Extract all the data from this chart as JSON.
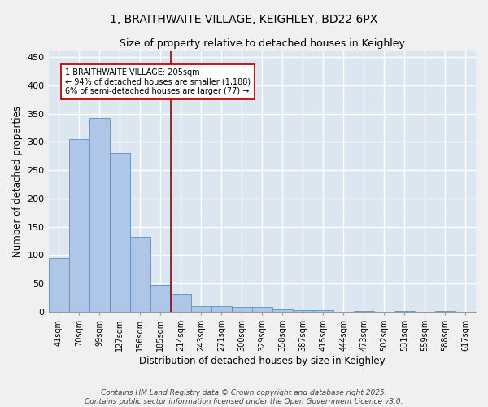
{
  "title_line1": "1, BRAITHWAITE VILLAGE, KEIGHLEY, BD22 6PX",
  "title_line2": "Size of property relative to detached houses in Keighley",
  "xlabel": "Distribution of detached houses by size in Keighley",
  "ylabel": "Number of detached properties",
  "categories": [
    "41sqm",
    "70sqm",
    "99sqm",
    "127sqm",
    "156sqm",
    "185sqm",
    "214sqm",
    "243sqm",
    "271sqm",
    "300sqm",
    "329sqm",
    "358sqm",
    "387sqm",
    "415sqm",
    "444sqm",
    "473sqm",
    "502sqm",
    "531sqm",
    "559sqm",
    "588sqm",
    "617sqm"
  ],
  "values": [
    95,
    305,
    342,
    280,
    133,
    47,
    32,
    10,
    10,
    8,
    8,
    5,
    3,
    3,
    0,
    2,
    0,
    2,
    0,
    2,
    0
  ],
  "bar_color": "#aec6e8",
  "bar_edge_color": "#5a8fc0",
  "vline_x": 5.5,
  "vline_color": "#cc0000",
  "annotation_text": "1 BRAITHWAITE VILLAGE: 205sqm\n← 94% of detached houses are smaller (1,188)\n6% of semi-detached houses are larger (77) →",
  "annotation_box_color": "#ffffff",
  "annotation_box_edge": "#cc0000",
  "ylim": [
    0,
    460
  ],
  "yticks": [
    0,
    50,
    100,
    150,
    200,
    250,
    300,
    350,
    400,
    450
  ],
  "footer_line1": "Contains HM Land Registry data © Crown copyright and database right 2025.",
  "footer_line2": "Contains public sector information licensed under the Open Government Licence v3.0.",
  "bg_color": "#dce6f0",
  "grid_color": "#ffffff",
  "title_fontsize": 10,
  "subtitle_fontsize": 9,
  "footer_fontsize": 6.5
}
